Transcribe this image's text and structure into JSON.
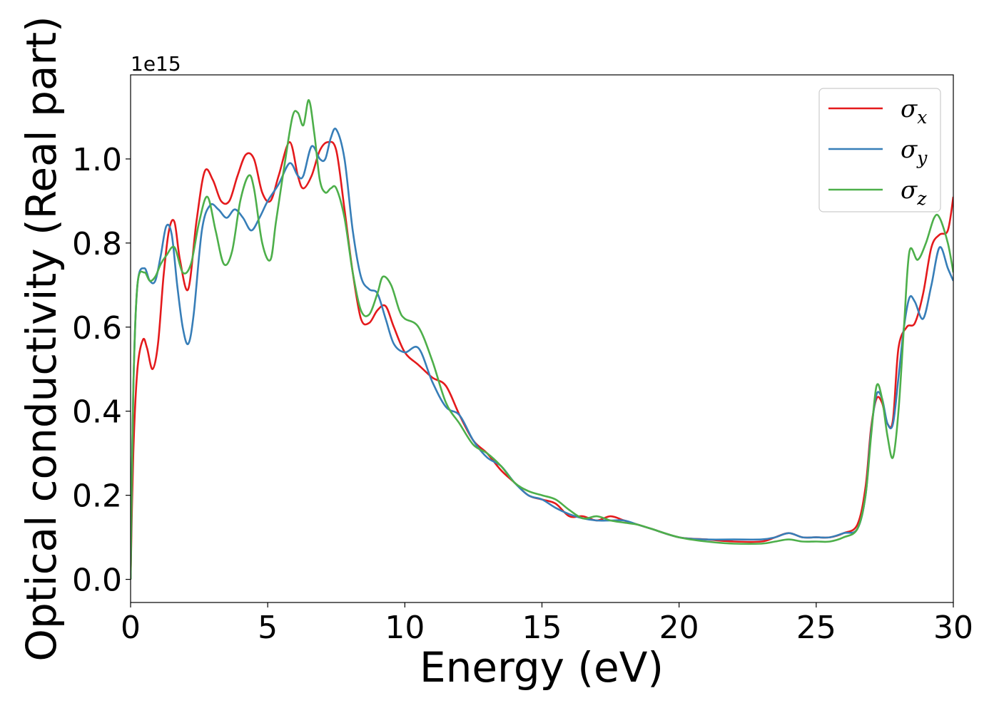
{
  "chart_data": {
    "type": "line",
    "xlabel": "Energy (eV)",
    "ylabel": "Optical conductivity (Real part)",
    "y_offset_text": "1e15",
    "xlim": [
      0,
      30
    ],
    "ylim": [
      -0.055,
      1.2
    ],
    "xticks": [
      0,
      5,
      10,
      15,
      20,
      25,
      30
    ],
    "xtick_labels": [
      "0",
      "5",
      "10",
      "15",
      "20",
      "25",
      "30"
    ],
    "yticks": [
      0.0,
      0.2,
      0.4,
      0.6,
      0.8,
      1.0
    ],
    "ytick_labels": [
      "0.0",
      "0.2",
      "0.4",
      "0.6",
      "0.8",
      "1.0"
    ],
    "grid": false,
    "legend_position": "top-right",
    "series": [
      {
        "name": "σ_x",
        "label_main": "σ",
        "label_sub": "x",
        "color": "#e41a1c",
        "x": [
          0,
          0.1,
          0.25,
          0.45,
          0.6,
          0.8,
          1.0,
          1.2,
          1.4,
          1.6,
          1.8,
          2.1,
          2.4,
          2.7,
          3.0,
          3.3,
          3.6,
          3.9,
          4.2,
          4.5,
          4.8,
          5.1,
          5.4,
          5.8,
          6.1,
          6.3,
          6.6,
          6.9,
          7.2,
          7.5,
          7.8,
          8.1,
          8.4,
          8.7,
          9.0,
          9.3,
          9.6,
          10.0,
          10.5,
          11.0,
          11.5,
          12.0,
          12.5,
          13.0,
          13.5,
          14.0,
          14.5,
          15.0,
          15.5,
          16.0,
          16.5,
          17.0,
          17.5,
          18.0,
          18.5,
          19.0,
          20.0,
          21.0,
          22.0,
          23.0,
          23.5,
          24.0,
          24.5,
          25.0,
          25.5,
          26.0,
          26.5,
          26.8,
          27.0,
          27.2,
          27.4,
          27.6,
          27.8,
          28.0,
          28.3,
          28.6,
          28.9,
          29.2,
          29.5,
          29.8,
          30.0
        ],
        "values": [
          0.0,
          0.3,
          0.5,
          0.57,
          0.55,
          0.5,
          0.56,
          0.72,
          0.83,
          0.85,
          0.76,
          0.69,
          0.85,
          0.97,
          0.95,
          0.9,
          0.9,
          0.96,
          1.01,
          1.0,
          0.92,
          0.9,
          0.96,
          1.04,
          0.96,
          0.93,
          0.96,
          1.02,
          1.04,
          1.02,
          0.88,
          0.73,
          0.62,
          0.61,
          0.64,
          0.65,
          0.6,
          0.54,
          0.51,
          0.48,
          0.46,
          0.39,
          0.33,
          0.3,
          0.26,
          0.23,
          0.2,
          0.19,
          0.18,
          0.15,
          0.15,
          0.14,
          0.15,
          0.14,
          0.13,
          0.12,
          0.1,
          0.095,
          0.09,
          0.09,
          0.1,
          0.11,
          0.1,
          0.1,
          0.1,
          0.11,
          0.13,
          0.22,
          0.36,
          0.43,
          0.42,
          0.37,
          0.38,
          0.55,
          0.6,
          0.61,
          0.68,
          0.79,
          0.82,
          0.83,
          0.91
        ]
      },
      {
        "name": "σ_y",
        "label_main": "σ",
        "label_sub": "y",
        "color": "#377eb8",
        "x": [
          0,
          0.1,
          0.25,
          0.5,
          0.7,
          0.9,
          1.1,
          1.3,
          1.5,
          1.7,
          1.9,
          2.1,
          2.3,
          2.6,
          2.9,
          3.2,
          3.5,
          3.8,
          4.1,
          4.4,
          4.7,
          5.0,
          5.4,
          5.8,
          6.1,
          6.3,
          6.6,
          6.9,
          7.1,
          7.3,
          7.5,
          7.8,
          8.1,
          8.4,
          8.7,
          9.0,
          9.3,
          9.6,
          10.0,
          10.5,
          11.0,
          11.5,
          12.0,
          12.5,
          13.0,
          13.5,
          14.0,
          14.5,
          15.0,
          15.5,
          16.0,
          16.5,
          17.0,
          17.5,
          18.0,
          18.5,
          19.0,
          20.0,
          21.0,
          22.0,
          23.0,
          23.5,
          24.0,
          24.5,
          25.0,
          25.5,
          26.0,
          26.5,
          26.8,
          27.0,
          27.2,
          27.4,
          27.6,
          27.8,
          28.0,
          28.2,
          28.4,
          28.6,
          28.9,
          29.2,
          29.5,
          29.8,
          30.0
        ],
        "values": [
          0.0,
          0.45,
          0.7,
          0.74,
          0.71,
          0.71,
          0.77,
          0.84,
          0.82,
          0.7,
          0.6,
          0.56,
          0.63,
          0.83,
          0.89,
          0.88,
          0.86,
          0.88,
          0.86,
          0.83,
          0.86,
          0.9,
          0.94,
          0.99,
          0.96,
          0.96,
          1.03,
          1.0,
          1.0,
          1.05,
          1.07,
          1.0,
          0.83,
          0.72,
          0.69,
          0.68,
          0.62,
          0.56,
          0.54,
          0.55,
          0.47,
          0.41,
          0.39,
          0.33,
          0.29,
          0.27,
          0.23,
          0.2,
          0.19,
          0.17,
          0.155,
          0.145,
          0.14,
          0.14,
          0.14,
          0.13,
          0.12,
          0.1,
          0.095,
          0.095,
          0.095,
          0.1,
          0.11,
          0.1,
          0.1,
          0.1,
          0.11,
          0.12,
          0.2,
          0.35,
          0.44,
          0.43,
          0.37,
          0.37,
          0.48,
          0.6,
          0.67,
          0.66,
          0.62,
          0.7,
          0.79,
          0.74,
          0.71
        ]
      },
      {
        "name": "σ_z",
        "label_main": "σ",
        "label_sub": "z",
        "color": "#4daf4a",
        "x": [
          0,
          0.1,
          0.25,
          0.5,
          0.7,
          0.9,
          1.1,
          1.3,
          1.6,
          1.9,
          2.2,
          2.5,
          2.8,
          3.1,
          3.4,
          3.7,
          4.0,
          4.3,
          4.5,
          4.8,
          5.1,
          5.3,
          5.6,
          5.9,
          6.1,
          6.3,
          6.5,
          6.7,
          6.9,
          7.1,
          7.3,
          7.5,
          7.8,
          8.1,
          8.4,
          8.7,
          9.0,
          9.2,
          9.5,
          9.8,
          10.0,
          10.5,
          11.0,
          11.5,
          12.0,
          12.5,
          13.0,
          13.5,
          14.0,
          14.5,
          15.0,
          15.5,
          16.0,
          16.5,
          17.0,
          17.5,
          18.0,
          18.5,
          19.0,
          20.0,
          21.0,
          22.0,
          23.0,
          23.5,
          24.0,
          24.5,
          25.0,
          25.5,
          26.0,
          26.5,
          26.8,
          27.0,
          27.2,
          27.4,
          27.6,
          27.8,
          28.0,
          28.2,
          28.4,
          28.7,
          29.0,
          29.3,
          29.5,
          29.8,
          30.0
        ],
        "values": [
          0.0,
          0.45,
          0.7,
          0.73,
          0.71,
          0.72,
          0.75,
          0.77,
          0.79,
          0.73,
          0.75,
          0.85,
          0.91,
          0.83,
          0.75,
          0.78,
          0.9,
          0.96,
          0.93,
          0.8,
          0.76,
          0.85,
          0.98,
          1.1,
          1.11,
          1.08,
          1.14,
          1.06,
          0.95,
          0.92,
          0.93,
          0.93,
          0.86,
          0.73,
          0.64,
          0.63,
          0.68,
          0.72,
          0.7,
          0.64,
          0.62,
          0.6,
          0.52,
          0.42,
          0.37,
          0.32,
          0.3,
          0.27,
          0.23,
          0.21,
          0.2,
          0.19,
          0.165,
          0.145,
          0.15,
          0.14,
          0.135,
          0.13,
          0.12,
          0.1,
          0.09,
          0.085,
          0.085,
          0.09,
          0.095,
          0.09,
          0.09,
          0.09,
          0.1,
          0.12,
          0.2,
          0.34,
          0.46,
          0.43,
          0.34,
          0.29,
          0.4,
          0.6,
          0.78,
          0.76,
          0.8,
          0.86,
          0.86,
          0.8,
          0.73
        ]
      }
    ]
  }
}
